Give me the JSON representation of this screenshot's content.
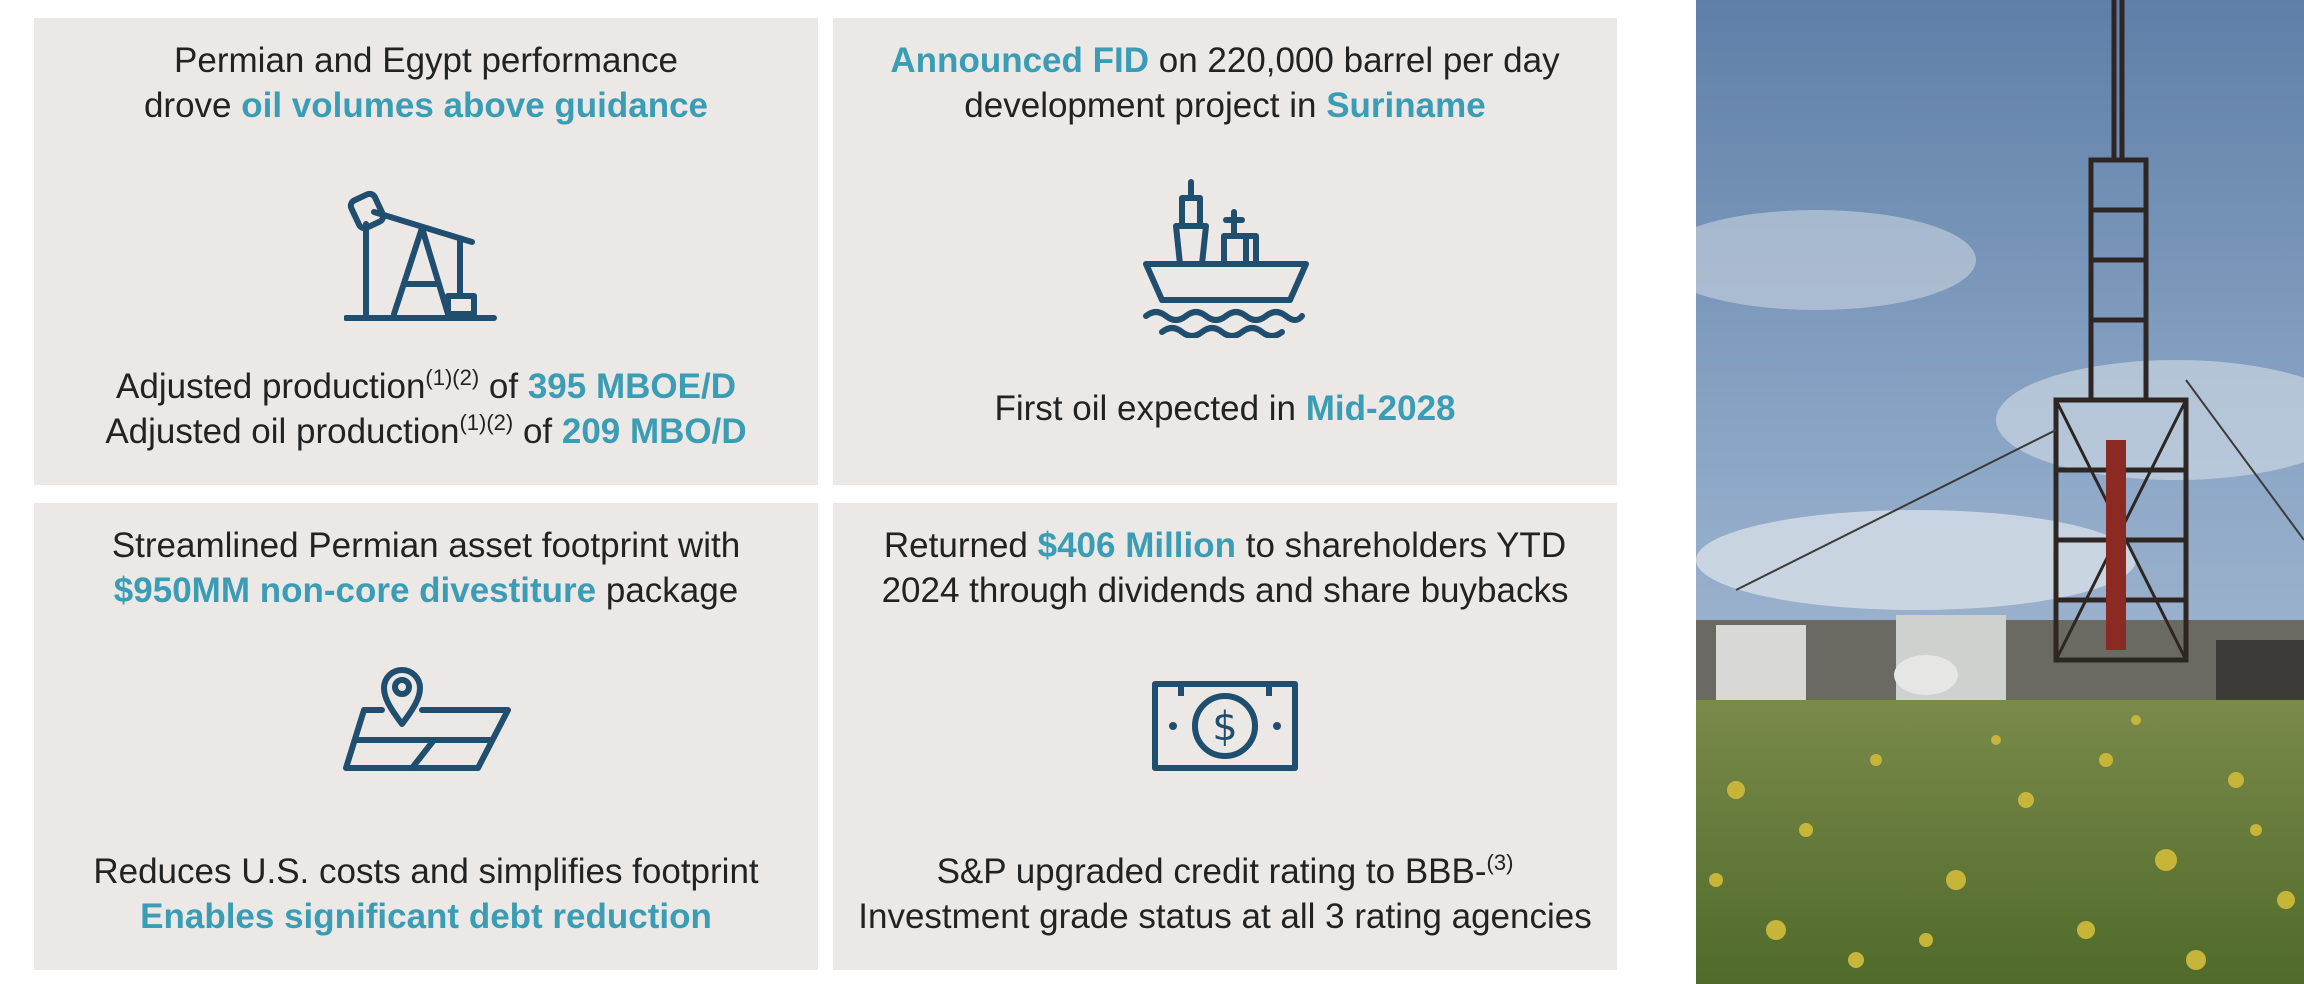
{
  "colors": {
    "card_bg": "#ebe8e5",
    "highlight": "#3a9db5",
    "icon": "#1f4e6e"
  },
  "cards": [
    {
      "icon": "oil-pump-jack-icon",
      "top_lines": [
        [
          "Permian and Egypt performance"
        ],
        [
          "drove ",
          "oil volumes above guidance"
        ]
      ],
      "bottom_1": {
        "a": "Adjusted production",
        "sup": "(1)(2)",
        "b": " of ",
        "hl": "395 MBOE/D"
      },
      "bottom_2": {
        "a": "Adjusted oil production",
        "sup": "(1)(2)",
        "b": " of ",
        "hl": "209 MBO/D"
      }
    },
    {
      "icon": "offshore-ship-icon",
      "top_1": {
        "hl": "Announced FID",
        "b": " on 220,000 barrel per day"
      },
      "top_2": {
        "a": "development project in ",
        "hl": "Suriname"
      },
      "bottom": {
        "a": "First oil expected in ",
        "hl": "Mid-2028"
      }
    },
    {
      "icon": "map-location-pin-icon",
      "top_1": "Streamlined Permian asset footprint with",
      "top_2": {
        "hl": "$950MM non-core divestiture",
        "b": " package"
      },
      "bottom_1": "Reduces U.S. costs and simplifies footprint",
      "bottom_2": "Enables significant debt reduction"
    },
    {
      "icon": "dollar-bill-icon",
      "top_1": {
        "a": "Returned ",
        "hl": "$406 Million",
        "b": " to shareholders YTD"
      },
      "top_2": "2024 through dividends and share buybacks",
      "bottom_1": {
        "a": "S&P upgraded credit rating to BBB-",
        "sup": "(3)"
      },
      "bottom_2": "Investment grade status at all 3 rating agencies"
    }
  ],
  "photo": {
    "subject": "oil drilling rig in field with yellow wildflowers"
  }
}
